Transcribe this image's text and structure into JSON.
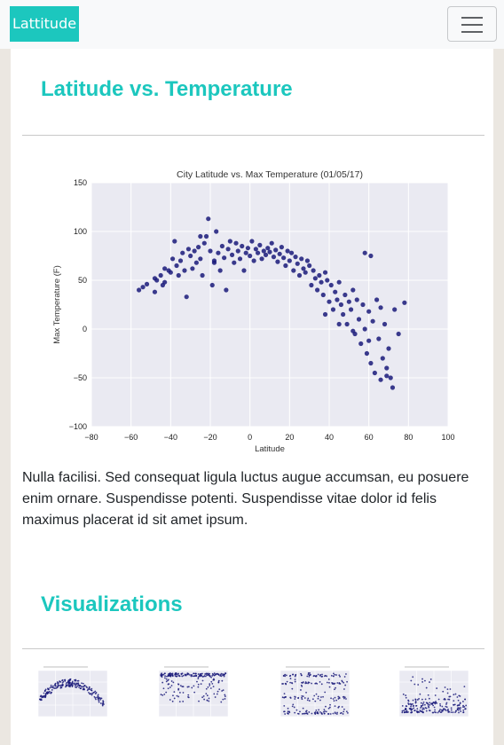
{
  "navbar": {
    "brand": "Lattitude"
  },
  "page": {
    "heading": "Latitude vs. Temperature",
    "paragraph": "Nulla facilisi. Sed consequat ligula luctus augue accumsan, eu posuere enim ornare. Suspendisse potenti. Suspendisse vitae dolor id felis maximus placerat id sit amet ipsum.",
    "visualizations_heading": "Visualizations"
  },
  "colors": {
    "accent": "#1cc7be",
    "point": "#1a1a7a",
    "plot_bg": "#eaeaf2"
  },
  "chart_data": {
    "type": "scatter",
    "title": "City Latitude vs. Max Temperature (01/05/17)",
    "xlabel": "Latitude",
    "ylabel": "Max Temperature (F)",
    "xlim": [
      -80,
      100
    ],
    "ylim": [
      -100,
      150
    ],
    "xticks": [
      -80,
      -60,
      -40,
      -20,
      0,
      20,
      40,
      60,
      80,
      100
    ],
    "yticks": [
      -100,
      -50,
      0,
      50,
      100,
      150
    ],
    "grid": true,
    "points": [
      [
        -56,
        40
      ],
      [
        -54,
        43
      ],
      [
        -52,
        46
      ],
      [
        -48,
        38
      ],
      [
        -47,
        50
      ],
      [
        -45,
        55
      ],
      [
        -44,
        45
      ],
      [
        -43,
        62
      ],
      [
        -41,
        60
      ],
      [
        -40,
        58
      ],
      [
        -39,
        72
      ],
      [
        -38,
        90
      ],
      [
        -37,
        65
      ],
      [
        -36,
        55
      ],
      [
        -35,
        70
      ],
      [
        -34,
        78
      ],
      [
        -33,
        60
      ],
      [
        -32,
        33
      ],
      [
        -31,
        82
      ],
      [
        -30,
        75
      ],
      [
        -29,
        62
      ],
      [
        -28,
        80
      ],
      [
        -27,
        68
      ],
      [
        -26,
        84
      ],
      [
        -25,
        72
      ],
      [
        -24,
        55
      ],
      [
        -23,
        88
      ],
      [
        -22,
        95
      ],
      [
        -21,
        113
      ],
      [
        -20,
        80
      ],
      [
        -19,
        45
      ],
      [
        -18,
        70
      ],
      [
        -17,
        100
      ],
      [
        -16,
        78
      ],
      [
        -15,
        60
      ],
      [
        -14,
        85
      ],
      [
        -13,
        73
      ],
      [
        -12,
        40
      ],
      [
        -11,
        82
      ],
      [
        -10,
        90
      ],
      [
        -9,
        76
      ],
      [
        -8,
        68
      ],
      [
        -7,
        88
      ],
      [
        -6,
        80
      ],
      [
        -5,
        72
      ],
      [
        -4,
        85
      ],
      [
        -3,
        60
      ],
      [
        -2,
        78
      ],
      [
        -1,
        83
      ],
      [
        0,
        75
      ],
      [
        1,
        90
      ],
      [
        2,
        70
      ],
      [
        3,
        82
      ],
      [
        4,
        78
      ],
      [
        5,
        86
      ],
      [
        6,
        72
      ],
      [
        7,
        80
      ],
      [
        8,
        76
      ],
      [
        9,
        83
      ],
      [
        10,
        79
      ],
      [
        11,
        88
      ],
      [
        12,
        74
      ],
      [
        13,
        81
      ],
      [
        14,
        69
      ],
      [
        15,
        77
      ],
      [
        16,
        84
      ],
      [
        17,
        73
      ],
      [
        18,
        65
      ],
      [
        19,
        80
      ],
      [
        20,
        70
      ],
      [
        21,
        78
      ],
      [
        22,
        60
      ],
      [
        23,
        74
      ],
      [
        24,
        67
      ],
      [
        25,
        55
      ],
      [
        26,
        72
      ],
      [
        27,
        62
      ],
      [
        28,
        58
      ],
      [
        29,
        70
      ],
      [
        30,
        65
      ],
      [
        31,
        45
      ],
      [
        32,
        60
      ],
      [
        33,
        52
      ],
      [
        34,
        40
      ],
      [
        35,
        55
      ],
      [
        36,
        48
      ],
      [
        37,
        35
      ],
      [
        38,
        58
      ],
      [
        39,
        50
      ],
      [
        40,
        28
      ],
      [
        41,
        45
      ],
      [
        42,
        20
      ],
      [
        43,
        38
      ],
      [
        44,
        30
      ],
      [
        45,
        48
      ],
      [
        46,
        25
      ],
      [
        47,
        15
      ],
      [
        48,
        35
      ],
      [
        49,
        5
      ],
      [
        50,
        28
      ],
      [
        51,
        20
      ],
      [
        52,
        40
      ],
      [
        53,
        -5
      ],
      [
        54,
        30
      ],
      [
        55,
        10
      ],
      [
        56,
        -15
      ],
      [
        57,
        25
      ],
      [
        58,
        0
      ],
      [
        59,
        -25
      ],
      [
        60,
        18
      ],
      [
        61,
        -35
      ],
      [
        62,
        8
      ],
      [
        63,
        -45
      ],
      [
        64,
        30
      ],
      [
        65,
        -10
      ],
      [
        66,
        22
      ],
      [
        67,
        -30
      ],
      [
        68,
        5
      ],
      [
        69,
        -40
      ],
      [
        70,
        -20
      ],
      [
        71,
        -50
      ],
      [
        72,
        -60
      ],
      [
        73,
        20
      ],
      [
        75,
        -5
      ],
      [
        78,
        27
      ],
      [
        58,
        78
      ],
      [
        61,
        75
      ],
      [
        -48,
        52
      ],
      [
        -43,
        48
      ],
      [
        -25,
        95
      ],
      [
        -18,
        68
      ],
      [
        38,
        15
      ],
      [
        45,
        5
      ],
      [
        52,
        -2
      ],
      [
        60,
        -12
      ],
      [
        66,
        -52
      ],
      [
        69,
        -48
      ]
    ]
  },
  "thumbnails": [
    {
      "label": "Latitude vs. Temperature"
    },
    {
      "label": "Latitude vs. Humidity"
    },
    {
      "label": "Latitude vs. Cloudiness"
    },
    {
      "label": "Latitude vs. Wind Speed"
    }
  ]
}
